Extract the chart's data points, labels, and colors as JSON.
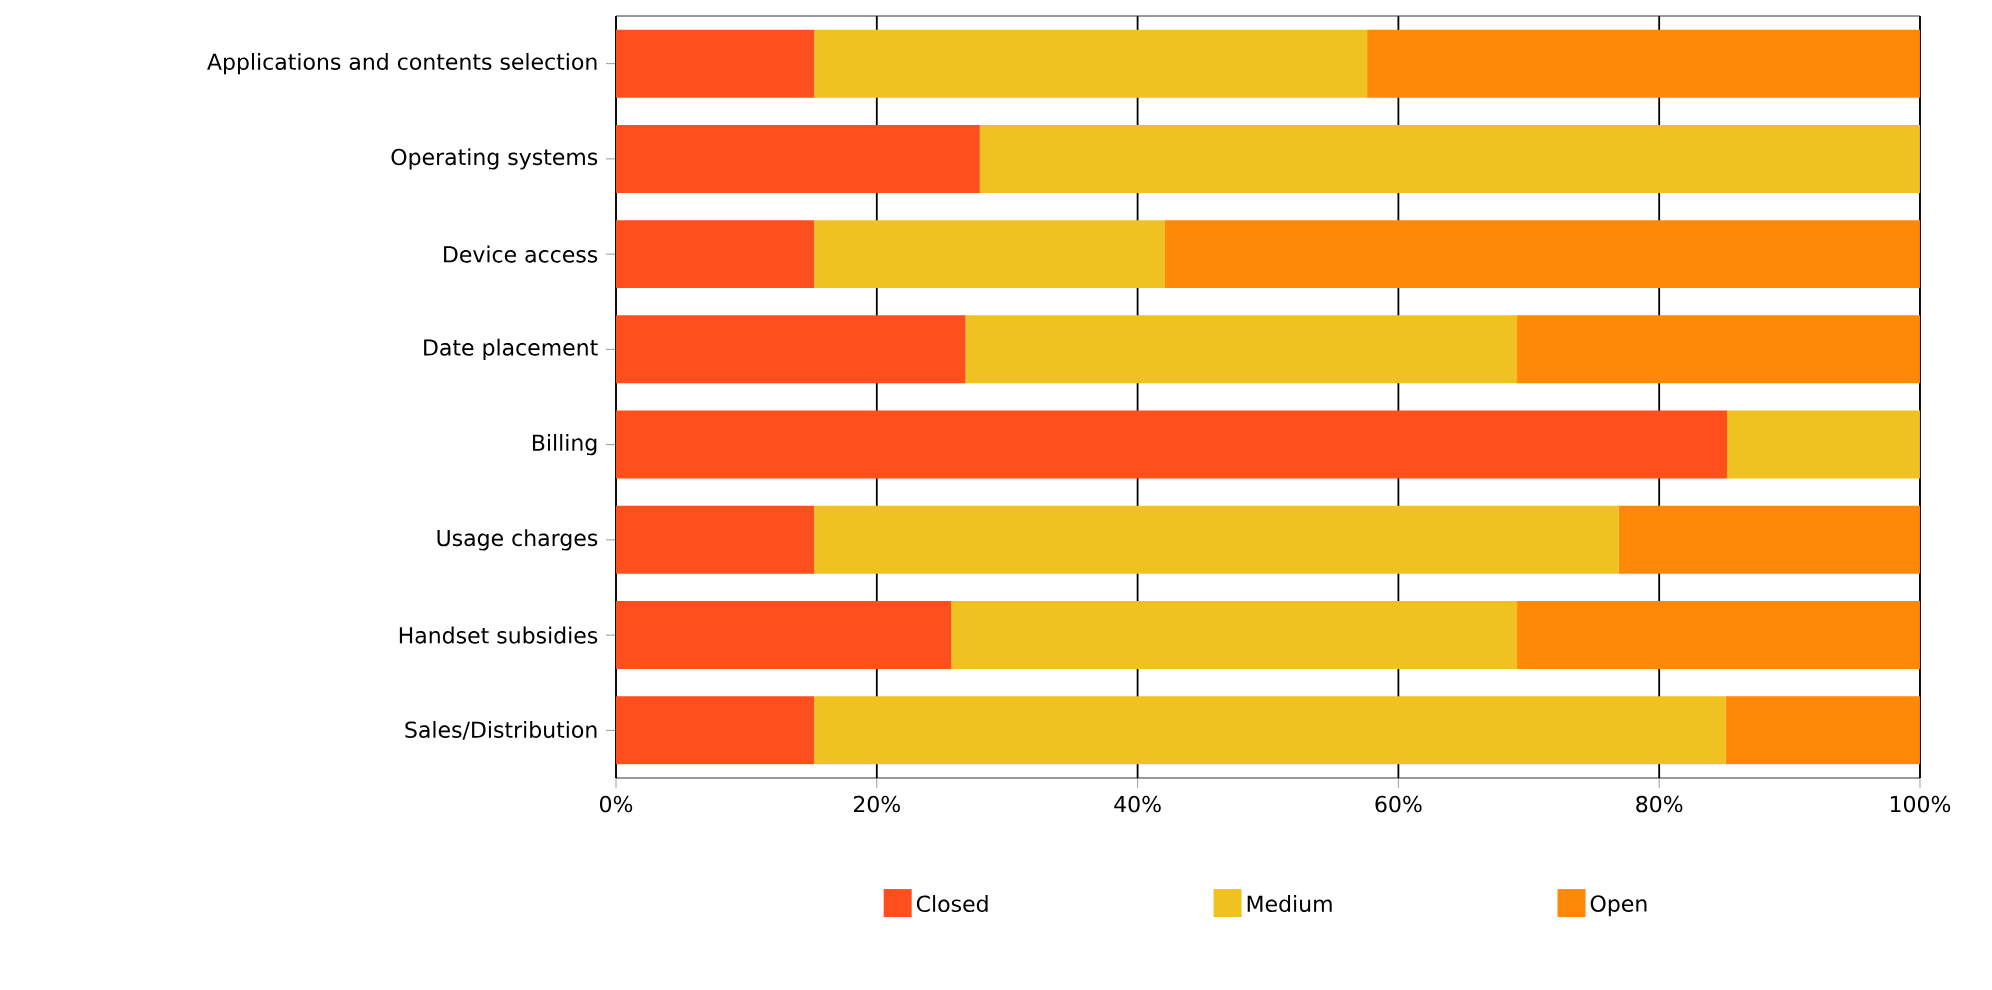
{
  "chart_data": {
    "type": "bar",
    "orientation": "horizontal",
    "stacked": true,
    "categories": [
      "Applications and contents selection",
      "Operating systems",
      "Device access",
      "Date placement",
      "Billing",
      "Usage charges",
      "Handset subsidies",
      "Sales/Distribution"
    ],
    "series": [
      {
        "name": "Closed",
        "color": "#ff4f1c",
        "values": [
          15.2,
          27.9,
          15.2,
          26.8,
          85.2,
          15.2,
          25.7,
          15.2
        ]
      },
      {
        "name": "Medium",
        "color": "#f0c221",
        "values": [
          42.4,
          72.1,
          26.9,
          42.3,
          14.8,
          61.7,
          43.4,
          69.9
        ]
      },
      {
        "name": "Open",
        "color": "#fe8909",
        "values": [
          42.4,
          null,
          57.9,
          30.9,
          null,
          23.1,
          30.9,
          14.9
        ]
      }
    ],
    "xlim": [
      0,
      100
    ],
    "xticks": [
      {
        "value": 0,
        "label": "0%"
      },
      {
        "value": 20,
        "label": "20%"
      },
      {
        "value": 40,
        "label": "40%"
      },
      {
        "value": 60,
        "label": "60%"
      },
      {
        "value": 80,
        "label": "80%"
      },
      {
        "value": 100,
        "label": "100%"
      }
    ],
    "grid": "x",
    "legend": "bottom"
  }
}
